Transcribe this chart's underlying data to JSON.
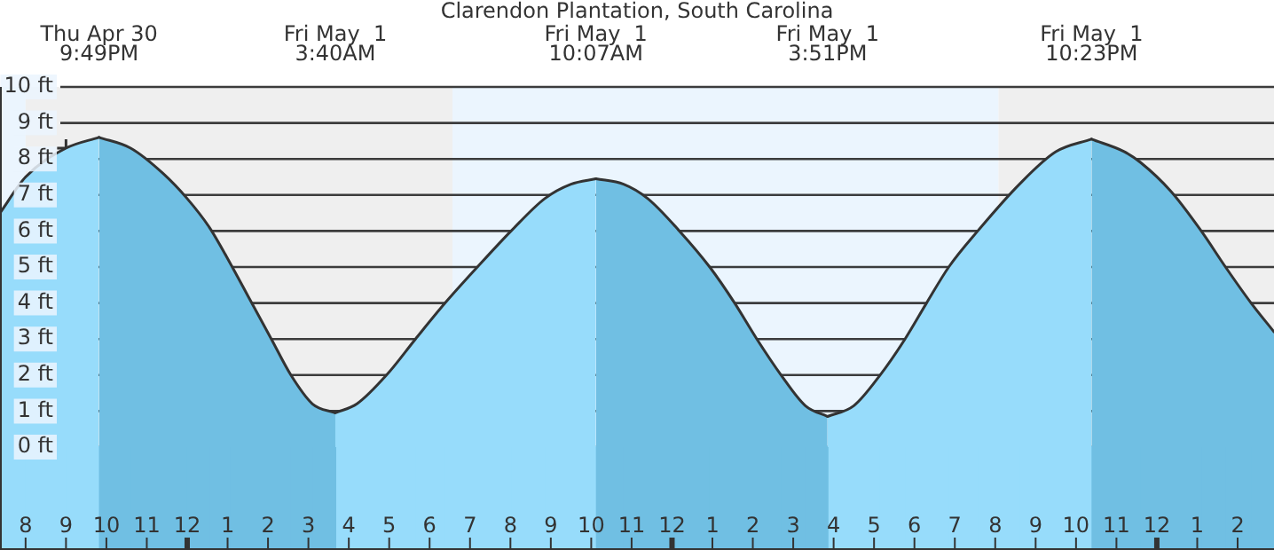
{
  "chart_data": {
    "type": "area",
    "title": "Clarendon Plantation, South Carolina",
    "x": [
      "--04-30T19:22",
      "--04-30T20:00",
      "--04-30T21:00",
      "--04-30T21:49",
      "--04-30T22:36",
      "--04-30T23:24",
      "--05-01T00:00",
      "--05-01T00:33",
      "--05-01T01:04",
      "--05-01T01:33",
      "--05-01T02:05",
      "--05-01T02:34",
      "--05-01T03:06",
      "--05-01T03:40",
      "--05-01T04:12",
      "--05-01T04:56",
      "--05-01T05:39",
      "--05-01T06:23",
      "--05-01T07:11",
      "--05-01T08:01",
      "--05-01T08:51",
      "--05-01T09:30",
      "--05-01T10:07",
      "--05-01T10:48",
      "--05-01T11:24",
      "--05-01T12:11",
      "--05-01T12:56",
      "--05-01T13:33",
      "--05-01T14:06",
      "--05-01T14:42",
      "--05-01T15:18",
      "--05-01T15:51",
      "--05-01T16:30",
      "--05-01T17:09",
      "--05-01T17:46",
      "--05-01T18:18",
      "--05-01T18:51",
      "--05-01T19:34",
      "--05-01T20:36",
      "--05-01T21:30",
      "--05-01T22:23",
      "--05-01T23:12",
      "--05-01T23:36",
      "--05-02T00:21",
      "--05-02T01:06",
      "--05-02T01:42",
      "--05-02T02:20",
      "--05-02T02:54"
    ],
    "series": [
      {
        "color": "#97dcfb",
        "values": [
          6.5,
          7.5,
          8.3,
          8.6,
          null,
          null,
          null,
          null,
          null,
          null,
          null,
          null,
          null,
          0.95,
          1.2,
          2.0,
          3.0,
          4.0,
          5.0,
          6.0,
          6.9,
          7.3,
          7.45,
          null,
          null,
          null,
          null,
          null,
          null,
          null,
          null,
          0.85,
          1.15,
          2.0,
          3.0,
          4.0,
          5.0,
          6.0,
          7.3,
          8.2,
          8.55,
          null,
          null,
          null,
          null,
          null,
          null,
          null
        ]
      },
      {
        "color": "#70bfe3",
        "values": [
          null,
          null,
          null,
          8.6,
          8.3,
          7.6,
          6.9,
          6.1,
          5.1,
          4.1,
          3.0,
          2.0,
          1.2,
          0.95,
          null,
          null,
          null,
          null,
          null,
          null,
          null,
          null,
          7.45,
          7.3,
          6.9,
          6.0,
          5.0,
          4.0,
          3.0,
          2.0,
          1.15,
          0.85,
          null,
          null,
          null,
          null,
          null,
          null,
          null,
          null,
          8.55,
          8.2,
          7.9,
          7.1,
          6.0,
          5.0,
          4.0,
          3.2
        ]
      },
      {
        "type": "scatter",
        "color": "#333333",
        "marker": "cross",
        "x": [
          "--04-30T21:00"
        ],
        "values": [
          8.3
        ]
      }
    ],
    "xlim": [
      "--04-30T19:22",
      "--05-02T02:54"
    ],
    "xticks": [
      {
        "value": "--04-30T20:00",
        "label": "8"
      },
      {
        "value": "--04-30T21:00",
        "label": "9"
      },
      {
        "value": "--04-30T22:00",
        "label": "10"
      },
      {
        "value": "--04-30T23:00",
        "label": "11"
      },
      {
        "value": "--05-01T00:00",
        "label": "12"
      },
      {
        "value": "--05-01T01:00",
        "label": "1"
      },
      {
        "value": "--05-01T02:00",
        "label": "2"
      },
      {
        "value": "--05-01T03:00",
        "label": "3"
      },
      {
        "value": "--05-01T04:00",
        "label": "4"
      },
      {
        "value": "--05-01T05:00",
        "label": "5"
      },
      {
        "value": "--05-01T06:00",
        "label": "6"
      },
      {
        "value": "--05-01T07:00",
        "label": "7"
      },
      {
        "value": "--05-01T08:00",
        "label": "8"
      },
      {
        "value": "--05-01T09:00",
        "label": "9"
      },
      {
        "value": "--05-01T10:00",
        "label": "10"
      },
      {
        "value": "--05-01T11:00",
        "label": "11"
      },
      {
        "value": "--05-01T12:00",
        "label": "12"
      },
      {
        "value": "--05-01T13:00",
        "label": "1"
      },
      {
        "value": "--05-01T14:00",
        "label": "2"
      },
      {
        "value": "--05-01T15:00",
        "label": "3"
      },
      {
        "value": "--05-01T16:00",
        "label": "4"
      },
      {
        "value": "--05-01T17:00",
        "label": "5"
      },
      {
        "value": "--05-01T18:00",
        "label": "6"
      },
      {
        "value": "--05-01T19:00",
        "label": "7"
      },
      {
        "value": "--05-01T20:00",
        "label": "8"
      },
      {
        "value": "--05-01T21:00",
        "label": "9"
      },
      {
        "value": "--05-01T22:00",
        "label": "10"
      },
      {
        "value": "--05-01T23:00",
        "label": "11"
      },
      {
        "value": "--05-02T00:00",
        "label": "12"
      },
      {
        "value": "--05-02T01:00",
        "label": "1"
      },
      {
        "value": "--05-02T02:00",
        "label": "2"
      }
    ],
    "ylim": [
      0,
      10
    ],
    "yticks": [
      {
        "value": 0,
        "label": "0 ft"
      },
      {
        "value": 1,
        "label": "1 ft"
      },
      {
        "value": 2,
        "label": "2 ft"
      },
      {
        "value": 3,
        "label": "3 ft"
      },
      {
        "value": 4,
        "label": "4 ft"
      },
      {
        "value": 5,
        "label": "5 ft"
      },
      {
        "value": 6,
        "label": "6 ft"
      },
      {
        "value": 7,
        "label": "7 ft"
      },
      {
        "value": 8,
        "label": "8 ft"
      },
      {
        "value": 9,
        "label": "9 ft"
      },
      {
        "value": 10,
        "label": "10 ft"
      }
    ],
    "grid": "y",
    "bands": [
      {
        "axis": "x",
        "from": "--04-30T19:22",
        "to": "--04-30T20:00",
        "color": "#ebf5fe"
      },
      {
        "axis": "x",
        "from": "--04-30T20:00",
        "to": "--05-01T06:34",
        "color": "#efefef"
      },
      {
        "axis": "x",
        "from": "--05-01T06:34",
        "to": "--05-01T20:05",
        "color": "#ebf5fe"
      },
      {
        "axis": "x",
        "from": "--05-01T20:05",
        "to": "--05-02T02:54",
        "color": "#efefef"
      }
    ],
    "annotations": [
      "Thu Apr 30\n9:49PM",
      "Fri May  1\n3:40AM",
      "Fri May  1\n10:07AM",
      "Fri May  1\n3:51PM",
      "Fri May  1\n10:23PM"
    ]
  }
}
